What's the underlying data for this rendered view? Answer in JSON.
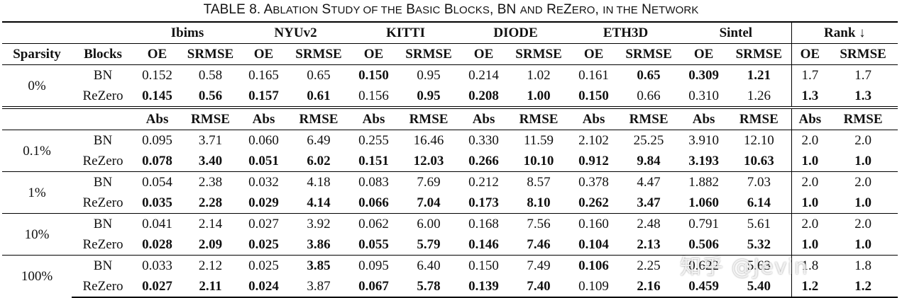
{
  "caption": {
    "prefix": "TABLE 8. A",
    "sc1": "BLATION",
    "w2": " S",
    "sc2": "TUDY OF THE",
    "w3": " B",
    "sc3": "ASIC",
    "w4": " B",
    "sc4": "LOCKS",
    "w5": ", BN ",
    "sc5": "AND",
    "w6": " R",
    "sc6": "E",
    "w7": "Z",
    "sc7": "ERO",
    "w8": ", ",
    "sc8": "IN THE",
    "w9": " N",
    "sc9": "ETWORK"
  },
  "header": {
    "datasets": [
      "Ibims",
      "NYUv2",
      "KITTI",
      "DIODE",
      "ETH3D",
      "Sintel"
    ],
    "rank": "Rank ↓",
    "sparsity": "Sparsity",
    "blocks": "Blocks",
    "m1": [
      "OE",
      "SRMSE"
    ],
    "m2": [
      "Abs",
      "RMSE"
    ]
  },
  "rows0": {
    "sparsity": "0%",
    "bn": {
      "label": "BN",
      "cells": [
        {
          "v": "0.152",
          "b": false
        },
        {
          "v": "0.58",
          "b": false
        },
        {
          "v": "0.165",
          "b": false
        },
        {
          "v": "0.65",
          "b": false
        },
        {
          "v": "0.150",
          "b": true
        },
        {
          "v": "0.95",
          "b": false
        },
        {
          "v": "0.214",
          "b": false
        },
        {
          "v": "1.02",
          "b": false
        },
        {
          "v": "0.161",
          "b": false
        },
        {
          "v": "0.65",
          "b": true
        },
        {
          "v": "0.309",
          "b": true
        },
        {
          "v": "1.21",
          "b": true
        },
        {
          "v": "1.7",
          "b": false
        },
        {
          "v": "1.7",
          "b": false
        }
      ]
    },
    "rz": {
      "label": "ReZero",
      "cells": [
        {
          "v": "0.145",
          "b": true
        },
        {
          "v": "0.56",
          "b": true
        },
        {
          "v": "0.157",
          "b": true
        },
        {
          "v": "0.61",
          "b": true
        },
        {
          "v": "0.156",
          "b": false
        },
        {
          "v": "0.95",
          "b": true
        },
        {
          "v": "0.208",
          "b": true
        },
        {
          "v": "1.00",
          "b": true
        },
        {
          "v": "0.150",
          "b": true
        },
        {
          "v": "0.66",
          "b": false
        },
        {
          "v": "0.310",
          "b": false
        },
        {
          "v": "1.26",
          "b": false
        },
        {
          "v": "1.3",
          "b": true
        },
        {
          "v": "1.3",
          "b": true
        }
      ]
    }
  },
  "groups": [
    {
      "sparsity": "0.1%",
      "bn": {
        "label": "BN",
        "cells": [
          {
            "v": "0.095",
            "b": false
          },
          {
            "v": "3.71",
            "b": false
          },
          {
            "v": "0.060",
            "b": false
          },
          {
            "v": "6.49",
            "b": false
          },
          {
            "v": "0.255",
            "b": false
          },
          {
            "v": "16.46",
            "b": false
          },
          {
            "v": "0.330",
            "b": false
          },
          {
            "v": "11.59",
            "b": false
          },
          {
            "v": "2.102",
            "b": false
          },
          {
            "v": "25.25",
            "b": false
          },
          {
            "v": "3.910",
            "b": false
          },
          {
            "v": "12.10",
            "b": false
          },
          {
            "v": "2.0",
            "b": false
          },
          {
            "v": "2.0",
            "b": false
          }
        ]
      },
      "rz": {
        "label": "ReZero",
        "cells": [
          {
            "v": "0.078",
            "b": true
          },
          {
            "v": "3.40",
            "b": true
          },
          {
            "v": "0.051",
            "b": true
          },
          {
            "v": "6.02",
            "b": true
          },
          {
            "v": "0.151",
            "b": true
          },
          {
            "v": "12.03",
            "b": true
          },
          {
            "v": "0.266",
            "b": true
          },
          {
            "v": "10.10",
            "b": true
          },
          {
            "v": "0.912",
            "b": true
          },
          {
            "v": "9.84",
            "b": true
          },
          {
            "v": "3.193",
            "b": true
          },
          {
            "v": "10.63",
            "b": true
          },
          {
            "v": "1.0",
            "b": true
          },
          {
            "v": "1.0",
            "b": true
          }
        ]
      }
    },
    {
      "sparsity": "1%",
      "bn": {
        "label": "BN",
        "cells": [
          {
            "v": "0.054",
            "b": false
          },
          {
            "v": "2.38",
            "b": false
          },
          {
            "v": "0.032",
            "b": false
          },
          {
            "v": "4.18",
            "b": false
          },
          {
            "v": "0.083",
            "b": false
          },
          {
            "v": "7.69",
            "b": false
          },
          {
            "v": "0.212",
            "b": false
          },
          {
            "v": "8.57",
            "b": false
          },
          {
            "v": "0.378",
            "b": false
          },
          {
            "v": "4.47",
            "b": false
          },
          {
            "v": "1.882",
            "b": false
          },
          {
            "v": "7.03",
            "b": false
          },
          {
            "v": "2.0",
            "b": false
          },
          {
            "v": "2.0",
            "b": false
          }
        ]
      },
      "rz": {
        "label": "ReZero",
        "cells": [
          {
            "v": "0.035",
            "b": true
          },
          {
            "v": "2.28",
            "b": true
          },
          {
            "v": "0.029",
            "b": true
          },
          {
            "v": "4.14",
            "b": true
          },
          {
            "v": "0.066",
            "b": true
          },
          {
            "v": "7.04",
            "b": true
          },
          {
            "v": "0.173",
            "b": true
          },
          {
            "v": "8.10",
            "b": true
          },
          {
            "v": "0.262",
            "b": true
          },
          {
            "v": "3.47",
            "b": true
          },
          {
            "v": "1.060",
            "b": true
          },
          {
            "v": "6.14",
            "b": true
          },
          {
            "v": "1.0",
            "b": true
          },
          {
            "v": "1.0",
            "b": true
          }
        ]
      }
    },
    {
      "sparsity": "10%",
      "bn": {
        "label": "BN",
        "cells": [
          {
            "v": "0.041",
            "b": false
          },
          {
            "v": "2.14",
            "b": false
          },
          {
            "v": "0.027",
            "b": false
          },
          {
            "v": "3.92",
            "b": false
          },
          {
            "v": "0.062",
            "b": false
          },
          {
            "v": "6.00",
            "b": false
          },
          {
            "v": "0.168",
            "b": false
          },
          {
            "v": "7.56",
            "b": false
          },
          {
            "v": "0.160",
            "b": false
          },
          {
            "v": "2.48",
            "b": false
          },
          {
            "v": "0.791",
            "b": false
          },
          {
            "v": "5.61",
            "b": false
          },
          {
            "v": "2.0",
            "b": false
          },
          {
            "v": "2.0",
            "b": false
          }
        ]
      },
      "rz": {
        "label": "ReZero",
        "cells": [
          {
            "v": "0.028",
            "b": true
          },
          {
            "v": "2.09",
            "b": true
          },
          {
            "v": "0.025",
            "b": true
          },
          {
            "v": "3.86",
            "b": true
          },
          {
            "v": "0.055",
            "b": true
          },
          {
            "v": "5.79",
            "b": true
          },
          {
            "v": "0.146",
            "b": true
          },
          {
            "v": "7.46",
            "b": true
          },
          {
            "v": "0.104",
            "b": true
          },
          {
            "v": "2.13",
            "b": true
          },
          {
            "v": "0.506",
            "b": true
          },
          {
            "v": "5.32",
            "b": true
          },
          {
            "v": "1.0",
            "b": true
          },
          {
            "v": "1.0",
            "b": true
          }
        ]
      }
    },
    {
      "sparsity": "100%",
      "bn": {
        "label": "BN",
        "cells": [
          {
            "v": "0.033",
            "b": false
          },
          {
            "v": "2.12",
            "b": false
          },
          {
            "v": "0.025",
            "b": false
          },
          {
            "v": "3.85",
            "b": true
          },
          {
            "v": "0.095",
            "b": false
          },
          {
            "v": "6.40",
            "b": false
          },
          {
            "v": "0.150",
            "b": false
          },
          {
            "v": "7.49",
            "b": false
          },
          {
            "v": "0.106",
            "b": true
          },
          {
            "v": "2.25",
            "b": false
          },
          {
            "v": "0.622",
            "b": false
          },
          {
            "v": "5.63",
            "b": false
          },
          {
            "v": "1.8",
            "b": false
          },
          {
            "v": "1.8",
            "b": false
          }
        ]
      },
      "rz": {
        "label": "ReZero",
        "cells": [
          {
            "v": "0.027",
            "b": true
          },
          {
            "v": "2.11",
            "b": true
          },
          {
            "v": "0.024",
            "b": true
          },
          {
            "v": "3.87",
            "b": false
          },
          {
            "v": "0.067",
            "b": true
          },
          {
            "v": "5.78",
            "b": true
          },
          {
            "v": "0.139",
            "b": true
          },
          {
            "v": "7.40",
            "b": true
          },
          {
            "v": "0.109",
            "b": false
          },
          {
            "v": "2.16",
            "b": true
          },
          {
            "v": "0.459",
            "b": true
          },
          {
            "v": "5.40",
            "b": true
          },
          {
            "v": "1.2",
            "b": true
          },
          {
            "v": "1.2",
            "b": true
          }
        ]
      }
    }
  ],
  "watermark": "知乎 @Jevin"
}
